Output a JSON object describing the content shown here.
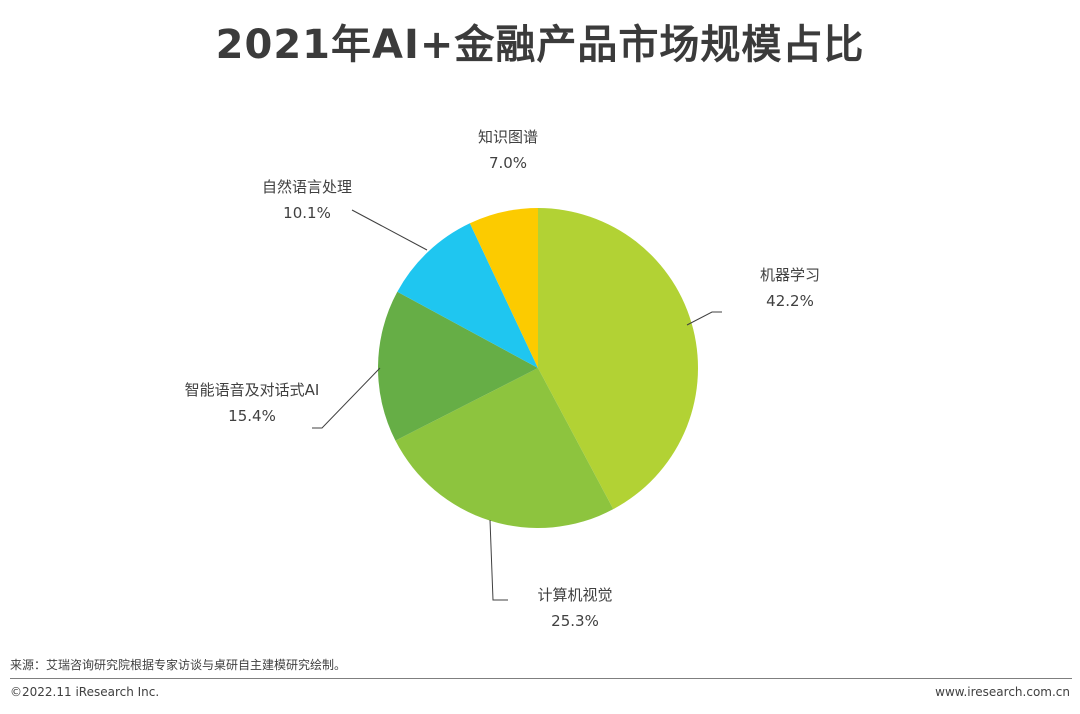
{
  "chart_data": {
    "type": "pie",
    "title": "2021年AI+金融产品市场规模占比",
    "series": [
      {
        "name": "机器学习",
        "value": 42.2,
        "label": "42.2%",
        "color": "#b2d234"
      },
      {
        "name": "计算机视觉",
        "value": 25.3,
        "label": "25.3%",
        "color": "#8dc43e"
      },
      {
        "name": "智能语音及对话式AI",
        "value": 15.4,
        "label": "15.4%",
        "color": "#66ae46"
      },
      {
        "name": "自然语言处理",
        "value": 10.1,
        "label": "10.1%",
        "color": "#1fc6f0"
      },
      {
        "name": "知识图谱",
        "value": 7.0,
        "label": "7.0%",
        "color": "#fccb00"
      }
    ],
    "start": "12 o'clock",
    "direction": "clockwise"
  },
  "footer": {
    "source": "来源：艾瑞咨询研究院根据专家访谈与桌研自主建模研究绘制。",
    "copyright": "©2022.11 iResearch Inc.",
    "website": "www.iresearch.com.cn"
  }
}
